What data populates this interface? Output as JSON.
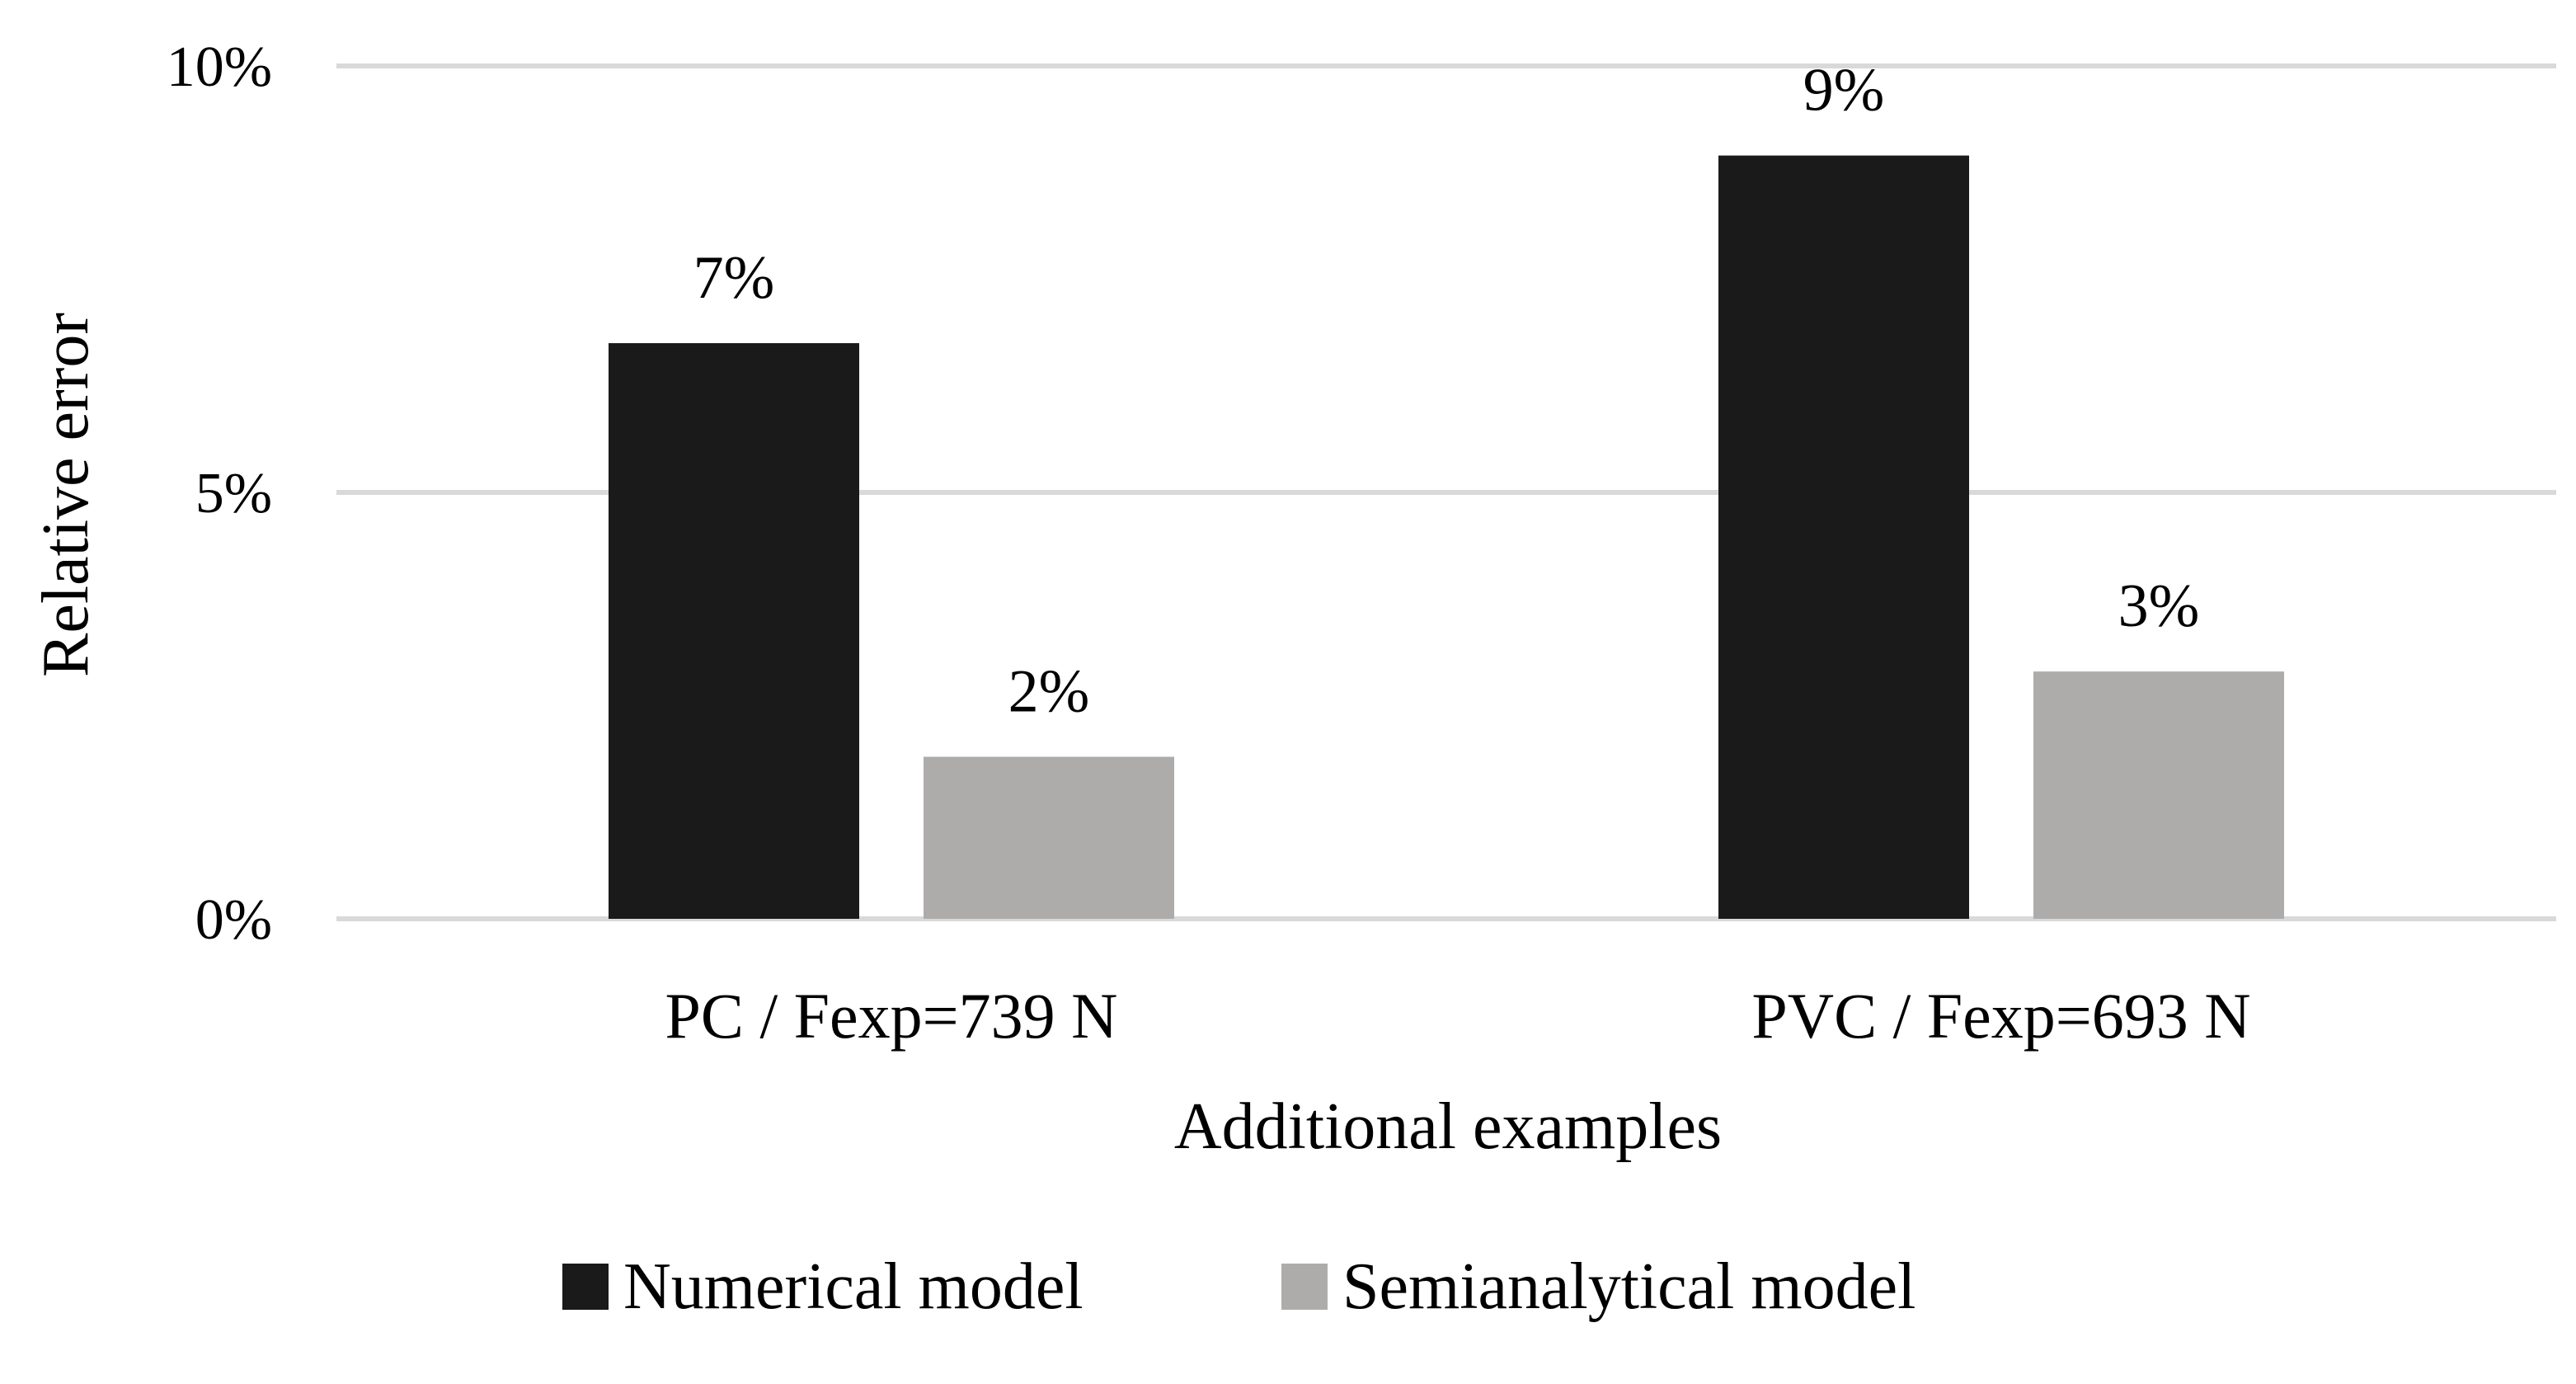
{
  "chart_data": {
    "type": "bar",
    "title": "",
    "xlabel": "Additional examples",
    "ylabel": "Relative error",
    "categories": [
      "PC / Fexp=739 N",
      "PVC / Fexp=693 N"
    ],
    "series": [
      {
        "name": "Numerical model",
        "values": [
          6.75,
          8.95
        ],
        "labels": [
          "7%",
          "9%"
        ],
        "color": "#1a1a1a"
      },
      {
        "name": "Semianalytical model",
        "values": [
          1.9,
          2.9
        ],
        "labels": [
          "2%",
          "3%"
        ],
        "color": "#aeacab"
      }
    ],
    "ylim": [
      0,
      10
    ],
    "yticks": [
      {
        "value": 0,
        "label": "0%"
      },
      {
        "value": 5,
        "label": "5%"
      },
      {
        "value": 10,
        "label": "10%"
      }
    ],
    "grid": true,
    "gridline_color": "#d9d9d9",
    "legend_position": "bottom"
  }
}
